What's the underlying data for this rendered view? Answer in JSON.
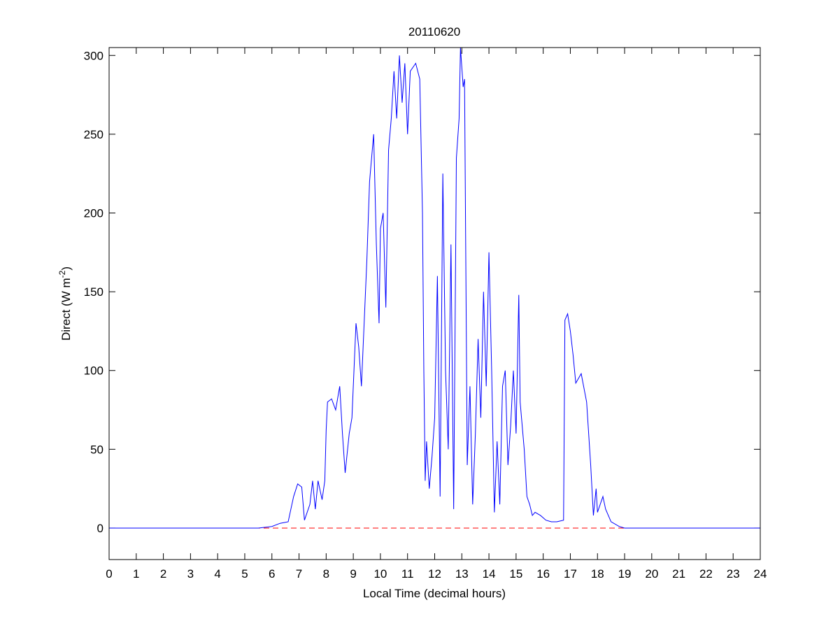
{
  "chart_data": {
    "type": "line",
    "title": "20110620",
    "xlabel": "Local Time (decimal hours)",
    "ylabel_parts": [
      "Direct (W m",
      "-2",
      ")"
    ],
    "xlim": [
      0,
      24
    ],
    "ylim": [
      -20,
      305
    ],
    "xticks": [
      0,
      1,
      2,
      3,
      4,
      5,
      6,
      7,
      8,
      9,
      10,
      11,
      12,
      13,
      14,
      15,
      16,
      17,
      18,
      19,
      20,
      21,
      22,
      23,
      24
    ],
    "yticks": [
      0,
      50,
      100,
      150,
      200,
      250,
      300
    ],
    "grid": false,
    "reference_line": {
      "value": 0,
      "color": "#ff0000",
      "style": "dashed"
    },
    "series": [
      {
        "color": "#0000ff",
        "x": [
          0,
          5.5,
          6,
          6.3,
          6.6,
          6.8,
          6.95,
          7.1,
          7.2,
          7.4,
          7.5,
          7.6,
          7.7,
          7.85,
          7.95,
          8.0,
          8.05,
          8.2,
          8.35,
          8.5,
          8.6,
          8.7,
          8.85,
          8.95,
          9.1,
          9.2,
          9.3,
          9.4,
          9.5,
          9.6,
          9.75,
          9.85,
          9.95,
          10.0,
          10.1,
          10.2,
          10.3,
          10.4,
          10.5,
          10.6,
          10.7,
          10.8,
          10.9,
          11.0,
          11.1,
          11.3,
          11.45,
          11.55,
          11.6,
          11.65,
          11.7,
          11.8,
          11.9,
          12.0,
          12.1,
          12.2,
          12.3,
          12.4,
          12.5,
          12.6,
          12.7,
          12.8,
          12.9,
          12.95,
          13.05,
          13.1,
          13.2,
          13.3,
          13.4,
          13.5,
          13.6,
          13.7,
          13.8,
          13.9,
          14.0,
          14.1,
          14.2,
          14.3,
          14.4,
          14.5,
          14.6,
          14.7,
          14.8,
          14.9,
          15.0,
          15.1,
          15.15,
          15.2,
          15.3,
          15.4,
          15.5,
          15.6,
          15.7,
          15.9,
          16.1,
          16.3,
          16.5,
          16.75,
          16.8,
          16.9,
          17.0,
          17.1,
          17.2,
          17.4,
          17.6,
          17.75,
          17.85,
          17.95,
          18.0,
          18.1,
          18.2,
          18.3,
          18.5,
          18.8,
          19.0,
          24
        ],
        "values": [
          0,
          0,
          1,
          3,
          4,
          20,
          28,
          26,
          5,
          15,
          30,
          12,
          30,
          18,
          30,
          62,
          80,
          82,
          75,
          90,
          60,
          35,
          60,
          70,
          130,
          115,
          90,
          130,
          170,
          220,
          250,
          180,
          130,
          190,
          200,
          140,
          240,
          260,
          290,
          260,
          300,
          270,
          295,
          250,
          290,
          295,
          285,
          200,
          100,
          30,
          55,
          25,
          45,
          70,
          160,
          20,
          225,
          100,
          50,
          180,
          12,
          235,
          260,
          305,
          280,
          285,
          40,
          90,
          15,
          60,
          120,
          70,
          150,
          90,
          175,
          100,
          10,
          55,
          15,
          90,
          100,
          40,
          65,
          100,
          60,
          148,
          80,
          70,
          50,
          20,
          15,
          8,
          10,
          8,
          5,
          4,
          4,
          5,
          132,
          136,
          125,
          110,
          92,
          98,
          80,
          40,
          8,
          25,
          10,
          15,
          20,
          12,
          4,
          1,
          0,
          0
        ]
      }
    ]
  }
}
